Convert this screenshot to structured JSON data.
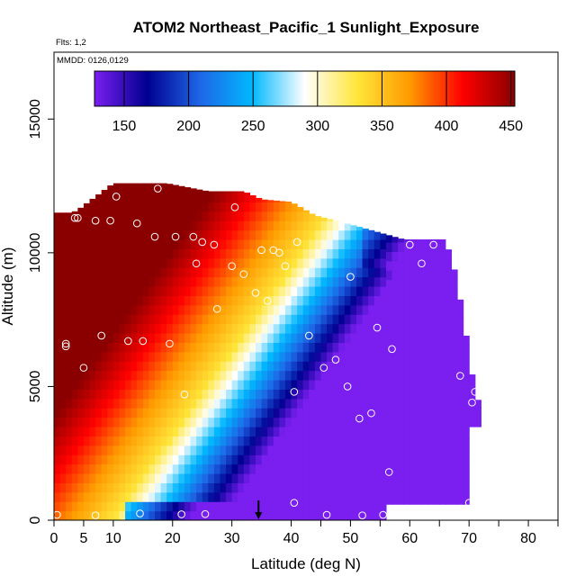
{
  "chart_data": {
    "type": "heatmap",
    "title": "ATOM2 Northeast_Pacific_1 Sunlight_Exposure",
    "flights_label": "Flts: 1,2",
    "dates_label": "MMDD: 0126,0129",
    "xlabel": "Latitude (deg N)",
    "ylabel": "Altitude (m)",
    "xlim": [
      0,
      85
    ],
    "ylim": [
      0,
      17500
    ],
    "x_ticks": [
      0,
      5,
      10,
      20,
      30,
      40,
      50,
      60,
      70,
      80
    ],
    "x_minor_ticks": [
      45,
      55,
      65,
      75,
      85
    ],
    "y_ticks": [
      0,
      5000,
      10000,
      15000
    ],
    "grid": false,
    "legend": "colorbar at top inside plot",
    "colorbar": {
      "range": [
        127,
        453
      ],
      "ticks": [
        150,
        200,
        250,
        300,
        350,
        400,
        450
      ],
      "colors": [
        "#7a1ff0",
        "#000090",
        "#1e66e6",
        "#00b8ff",
        "#ffffff",
        "#ffe63a",
        "#ff9a00",
        "#ff0000",
        "#8a0000"
      ]
    },
    "field": {
      "description_values": "sunlight exposure; high (~400-450) at low latitudes, decreasing toward ~150 at high latitudes and low altitudes",
      "lat_range": [
        0,
        72
      ],
      "alt_range": [
        0,
        12600
      ]
    },
    "observations": [
      [
        0.5,
        200
      ],
      [
        7,
        180
      ],
      [
        14.5,
        250
      ],
      [
        21.5,
        220
      ],
      [
        25.5,
        230
      ],
      [
        46,
        200
      ],
      [
        52,
        180
      ],
      [
        55.5,
        200
      ],
      [
        70,
        650
      ],
      [
        40.5,
        650
      ],
      [
        2,
        6500
      ],
      [
        2,
        6600
      ],
      [
        5,
        5700
      ],
      [
        8,
        6900
      ],
      [
        12.5,
        6700
      ],
      [
        15,
        6700
      ],
      [
        19.5,
        6600
      ],
      [
        22,
        4700
      ],
      [
        27.5,
        7900
      ],
      [
        36,
        8200
      ],
      [
        40.5,
        4800
      ],
      [
        43,
        6900
      ],
      [
        45.5,
        5700
      ],
      [
        47.5,
        6000
      ],
      [
        49.5,
        5000
      ],
      [
        51.5,
        3800
      ],
      [
        53.5,
        4000
      ],
      [
        54.5,
        7200
      ],
      [
        57,
        6400
      ],
      [
        68.5,
        5400
      ],
      [
        70.5,
        4400
      ],
      [
        71,
        4800
      ],
      [
        56.5,
        1800
      ],
      [
        3.5,
        11300
      ],
      [
        4,
        11300
      ],
      [
        7,
        11200
      ],
      [
        9.5,
        11200
      ],
      [
        14,
        11100
      ],
      [
        17,
        10600
      ],
      [
        20.5,
        10600
      ],
      [
        23.5,
        10600
      ],
      [
        25,
        10400
      ],
      [
        27,
        10300
      ],
      [
        24,
        9600
      ],
      [
        30,
        9500
      ],
      [
        32,
        9200
      ],
      [
        37,
        10100
      ],
      [
        39,
        9500
      ],
      [
        35,
        10100
      ],
      [
        41,
        10400
      ],
      [
        50,
        9100
      ],
      [
        60,
        10300
      ],
      [
        62,
        9600
      ],
      [
        64,
        10300
      ],
      [
        67,
        10600
      ],
      [
        10.5,
        12100
      ],
      [
        17.5,
        12400
      ],
      [
        30.5,
        11700
      ],
      [
        34,
        8500
      ],
      [
        38,
        10000
      ]
    ],
    "marker": {
      "x": 34.5,
      "y": 0,
      "label": "arrow"
    }
  }
}
